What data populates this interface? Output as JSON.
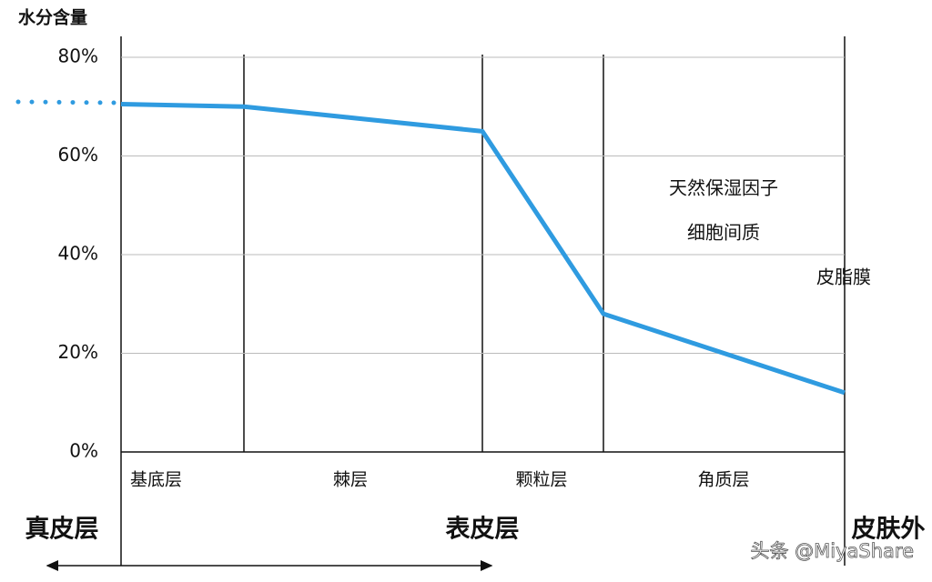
{
  "chart_data": {
    "type": "line",
    "y_label": "水分含量",
    "layers": [
      "基底层",
      "棘层",
      "颗粒层",
      "角质层"
    ],
    "values": [
      70.5,
      70,
      65,
      28,
      12
    ],
    "color": "#2f9be0",
    "ylim": [
      0,
      80
    ],
    "yticks": [
      {
        "value": 0,
        "label": "0%"
      },
      {
        "value": 20,
        "label": "20%"
      },
      {
        "value": 40,
        "label": "40%"
      },
      {
        "value": 60,
        "label": "60%"
      },
      {
        "value": 80,
        "label": "80%"
      }
    ],
    "grid": true,
    "annotations": [
      "天然保湿因子",
      "细胞间质",
      "皮脂膜"
    ],
    "regions": [
      "真皮层",
      "表皮层",
      "皮肤外"
    ],
    "watermark": "头条 @MiyaShare"
  }
}
